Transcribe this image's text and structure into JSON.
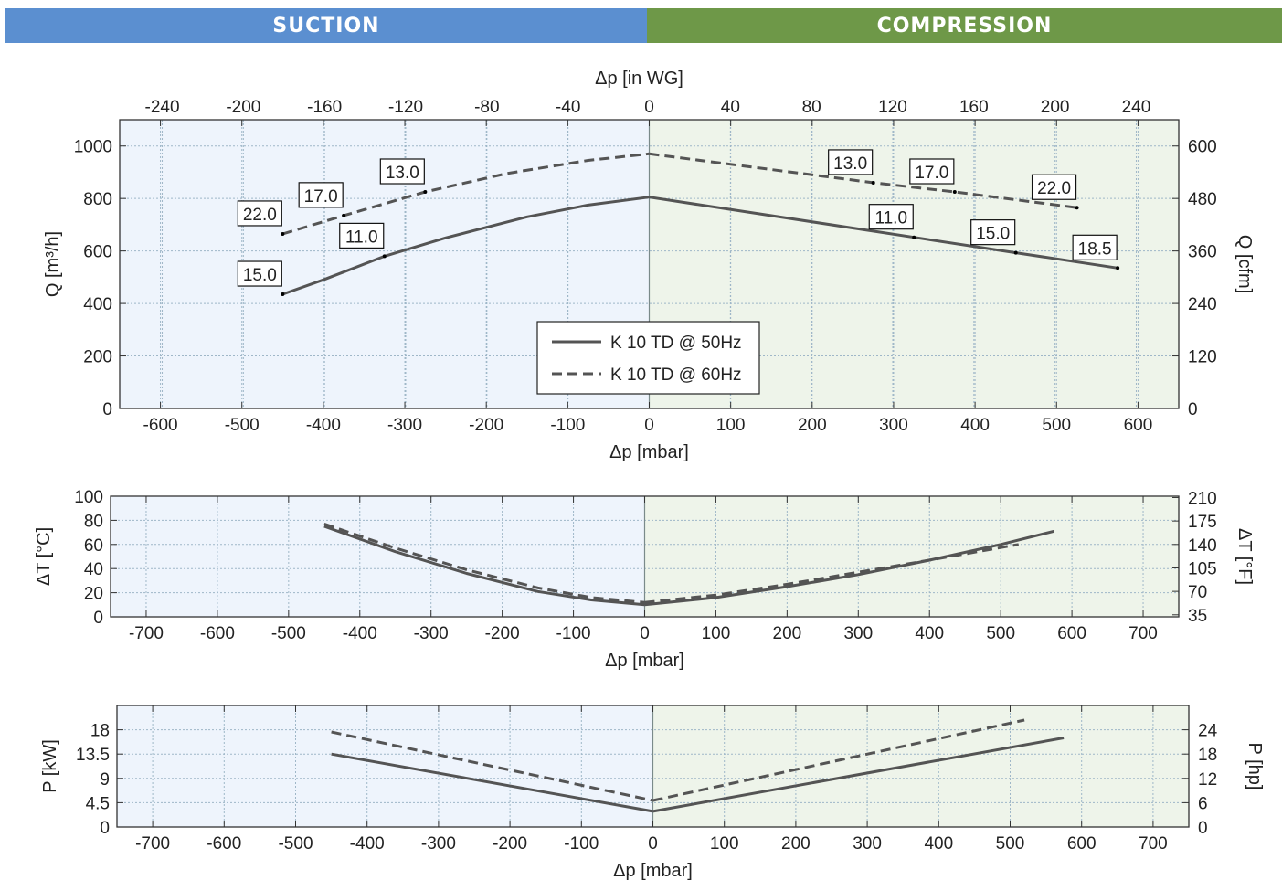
{
  "banner": {
    "suction_label": "SUCTION",
    "compression_label": "COMPRESSION",
    "suction_color": "#5b8fd0",
    "compression_color": "#6e9848"
  },
  "colors": {
    "suction_fill": "#eef4fc",
    "compression_fill": "#eef4ea",
    "grid": "#9fb7c8",
    "curve": "#545454",
    "axis": "#333333"
  },
  "chart_data": [
    {
      "type": "line",
      "id": "flow",
      "xlabel": "Δp [mbar]",
      "ylabel": "Q [m³/h]",
      "secondary_xlabel": "Δp [in WG]",
      "secondary_ylabel": "Q [cfm]",
      "xlim": [
        -650,
        650
      ],
      "ylim": [
        0,
        1100
      ],
      "xticks": [
        -600,
        -500,
        -400,
        -300,
        -200,
        -100,
        0,
        100,
        200,
        300,
        400,
        500,
        600
      ],
      "yticks": [
        0,
        200,
        400,
        600,
        800,
        1000
      ],
      "secondary_xticks": [
        -240,
        -200,
        -160,
        -120,
        -80,
        -40,
        0,
        40,
        80,
        120,
        160,
        200,
        240
      ],
      "secondary_yticks": [
        0,
        120,
        240,
        360,
        480,
        600
      ],
      "grid": true,
      "legend": {
        "position": "bottom-center",
        "entries": [
          {
            "name": "K 10 TD @ 50Hz",
            "style": "solid"
          },
          {
            "name": "K 10 TD @ 60Hz",
            "style": "dashed"
          }
        ]
      },
      "series": [
        {
          "name": "K 10 TD @ 50Hz",
          "style": "solid",
          "points": [
            [
              -450,
              435
            ],
            [
              -400,
              490
            ],
            [
              -325,
              580
            ],
            [
              -250,
              650
            ],
            [
              -150,
              730
            ],
            [
              -75,
              775
            ],
            [
              0,
              805
            ],
            [
              325,
              652
            ],
            [
              450,
              593
            ],
            [
              575,
              535
            ]
          ]
        },
        {
          "name": "K 10 TD @ 60Hz",
          "style": "dashed",
          "points": [
            [
              -450,
              665
            ],
            [
              -375,
              735
            ],
            [
              -275,
              825
            ],
            [
              -175,
              895
            ],
            [
              -75,
              945
            ],
            [
              0,
              970
            ],
            [
              275,
              860
            ],
            [
              375,
              825
            ],
            [
              525,
              765
            ]
          ]
        }
      ],
      "annotations": [
        {
          "text": "22.0",
          "x": -450,
          "y": 665
        },
        {
          "text": "17.0",
          "x": -375,
          "y": 735
        },
        {
          "text": "13.0",
          "x": -275,
          "y": 825
        },
        {
          "text": "15.0",
          "x": -450,
          "y": 435
        },
        {
          "text": "11.0",
          "x": -325,
          "y": 580
        },
        {
          "text": "13.0",
          "x": 275,
          "y": 860
        },
        {
          "text": "17.0",
          "x": 375,
          "y": 825
        },
        {
          "text": "22.0",
          "x": 525,
          "y": 765
        },
        {
          "text": "11.0",
          "x": 325,
          "y": 652
        },
        {
          "text": "15.0",
          "x": 450,
          "y": 593
        },
        {
          "text": "18.5",
          "x": 575,
          "y": 535
        }
      ]
    },
    {
      "type": "line",
      "id": "temperature",
      "xlabel": "Δp [mbar]",
      "ylabel": "ΔT [°C]",
      "secondary_ylabel": "ΔT [°F]",
      "xlim": [
        -750,
        750
      ],
      "ylim": [
        0,
        100
      ],
      "xticks": [
        -700,
        -600,
        -500,
        -400,
        -300,
        -200,
        -100,
        0,
        100,
        200,
        300,
        400,
        500,
        600,
        700
      ],
      "yticks": [
        0,
        20,
        40,
        60,
        80,
        100
      ],
      "secondary_yticks": [
        35,
        70,
        105,
        140,
        175,
        210
      ],
      "grid": true,
      "series": [
        {
          "name": "K 10 TD @ 50Hz",
          "style": "solid",
          "points": [
            [
              -450,
              75
            ],
            [
              -350,
              54
            ],
            [
              -250,
              36
            ],
            [
              -150,
              21
            ],
            [
              -75,
              14
            ],
            [
              0,
              10
            ],
            [
              100,
              16
            ],
            [
              200,
              25
            ],
            [
              300,
              35
            ],
            [
              400,
              47
            ],
            [
              500,
              60
            ],
            [
              575,
              71
            ]
          ]
        },
        {
          "name": "K 10 TD @ 60Hz",
          "style": "dashed",
          "points": [
            [
              -450,
              77
            ],
            [
              -350,
              57
            ],
            [
              -250,
              39
            ],
            [
              -150,
              24
            ],
            [
              -75,
              16
            ],
            [
              0,
              12
            ],
            [
              100,
              18
            ],
            [
              200,
              27
            ],
            [
              300,
              37
            ],
            [
              400,
              47
            ],
            [
              525,
              60
            ]
          ]
        }
      ]
    },
    {
      "type": "line",
      "id": "power",
      "xlabel": "Δp [mbar]",
      "ylabel": "P [kW]",
      "secondary_ylabel": "P [hp]",
      "xlim": [
        -750,
        750
      ],
      "ylim": [
        0,
        22.5
      ],
      "yticks": [
        0,
        4.5,
        9,
        13.5,
        18
      ],
      "ytick_labels": [
        "0",
        "4.5",
        "9",
        "13.5",
        "18"
      ],
      "xticks": [
        -700,
        -600,
        -500,
        -400,
        -300,
        -200,
        -100,
        0,
        100,
        200,
        300,
        400,
        500,
        600,
        700
      ],
      "secondary_yticks": [
        0,
        6,
        12,
        18,
        24
      ],
      "grid": true,
      "series": [
        {
          "name": "K 10 TD @ 50Hz",
          "style": "solid",
          "points": [
            [
              -450,
              13.5
            ],
            [
              0,
              2.9
            ],
            [
              575,
              16.5
            ]
          ]
        },
        {
          "name": "K 10 TD @ 60Hz",
          "style": "dashed",
          "points": [
            [
              -450,
              17.6
            ],
            [
              0,
              4.9
            ],
            [
              520,
              19.8
            ]
          ]
        }
      ]
    }
  ]
}
